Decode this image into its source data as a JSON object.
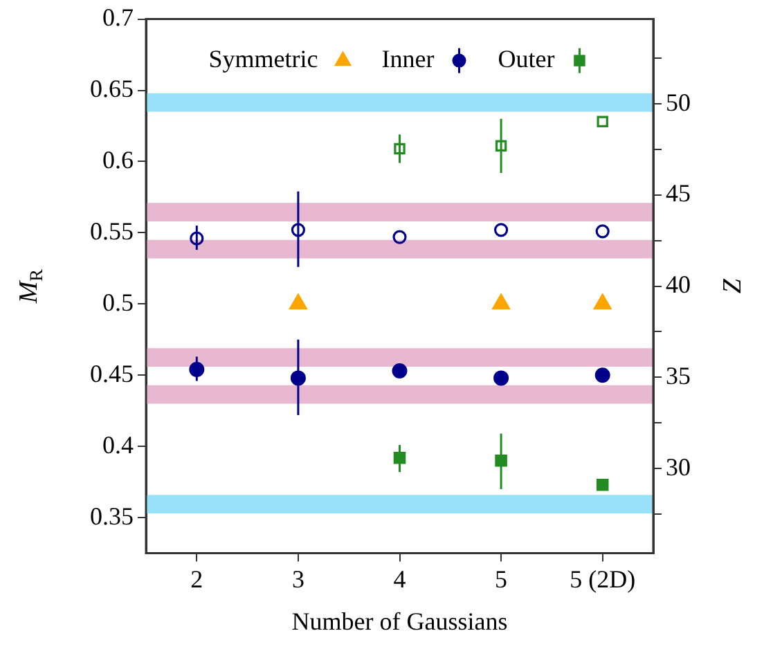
{
  "chart_data": {
    "type": "scatter",
    "xlabel": "Number of Gaussians",
    "ylabel": "M$_{R}$",
    "y2label": "Z",
    "categories": [
      "2",
      "3",
      "4",
      "5",
      "5 (2D)"
    ],
    "ylim": [
      0.325,
      0.7
    ],
    "yticks": [
      0.35,
      0.4,
      0.45,
      0.5,
      0.55,
      0.6,
      0.65,
      0.7
    ],
    "y2lim": [
      25.35,
      54.65
    ],
    "y2ticks": [
      {
        "value": 27.5,
        "label": null
      },
      30,
      {
        "value": 32.5,
        "label": null
      },
      35,
      {
        "value": 37.5,
        "label": null
      },
      40,
      {
        "value": 42.5,
        "label": null
      },
      45,
      {
        "value": 47.5,
        "label": null
      },
      50,
      {
        "value": 52.5,
        "label": null
      }
    ],
    "legend": "top",
    "grid": false,
    "bands": [
      {
        "axis": "y",
        "from": 0.635,
        "to": 0.648,
        "color": "#99e1f9"
      },
      {
        "axis": "y",
        "from": 0.353,
        "to": 0.366,
        "color": "#99e1f9"
      },
      {
        "axis": "y",
        "from": 0.558,
        "to": 0.571,
        "color": "#e8b7d0"
      },
      {
        "axis": "y",
        "from": 0.532,
        "to": 0.545,
        "color": "#e8b7d0"
      },
      {
        "axis": "y",
        "from": 0.456,
        "to": 0.469,
        "color": "#e8b7d0"
      },
      {
        "axis": "y",
        "from": 0.43,
        "to": 0.443,
        "color": "#e8b7d0"
      }
    ],
    "series": [
      {
        "name": "Symmetric",
        "color": "#ffa500",
        "marker": "triangle",
        "values": [
          null,
          0.5,
          null,
          0.5,
          0.5
        ]
      },
      {
        "name": "Inner",
        "color": "#00008b",
        "marker": "circle",
        "values": [
          0.454,
          0.448,
          0.453,
          0.448,
          0.45
        ],
        "errors": [
          [
            0.446,
            0.463
          ],
          [
            0.422,
            0.475
          ],
          null,
          null,
          null
        ]
      },
      {
        "color": "#00008b",
        "marker": "circle",
        "values": [
          0.546,
          0.552,
          0.547,
          0.552,
          0.551
        ],
        "errors": [
          [
            0.538,
            0.555
          ],
          [
            0.526,
            0.579
          ],
          null,
          null,
          null
        ]
      },
      {
        "name": "Outer",
        "color": "#228b22",
        "marker": "square",
        "values": [
          null,
          null,
          0.392,
          0.39,
          0.373
        ],
        "errors": [
          null,
          null,
          [
            0.382,
            0.401
          ],
          [
            0.37,
            0.409
          ],
          null
        ]
      },
      {
        "color": "#228b22",
        "marker": "square",
        "values": [
          null,
          null,
          0.609,
          0.611,
          0.628
        ],
        "errors": [
          null,
          null,
          [
            0.599,
            0.619
          ],
          [
            0.592,
            0.63
          ],
          null
        ]
      }
    ]
  }
}
